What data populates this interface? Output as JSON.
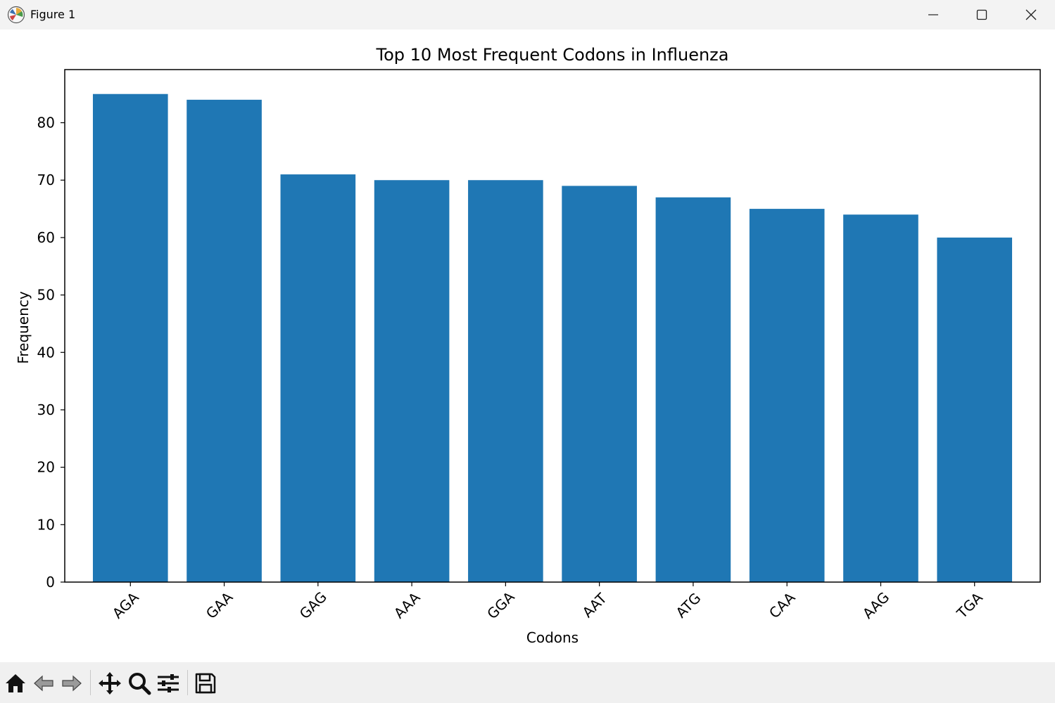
{
  "window": {
    "title": "Figure 1",
    "controls": [
      "minimize-icon",
      "maximize-icon",
      "close-icon"
    ]
  },
  "toolbar": {
    "tools": [
      "home-icon",
      "back-arrow-icon",
      "forward-arrow-icon",
      "pan-icon",
      "zoom-icon",
      "configure-subplots-icon",
      "save-icon"
    ]
  },
  "colors": {
    "bar": "#1f77b4",
    "titlebar": "#f3f3f3",
    "toolbar": "#f0f0f0"
  },
  "chart_data": {
    "type": "bar",
    "title": "Top 10 Most Frequent Codons in Influenza",
    "xlabel": "Codons",
    "ylabel": "Frequency",
    "categories": [
      "AGA",
      "GAA",
      "GAG",
      "AAA",
      "GGA",
      "AAT",
      "ATG",
      "CAA",
      "AAG",
      "TGA"
    ],
    "values": [
      85,
      84,
      71,
      70,
      70,
      69,
      67,
      65,
      64,
      60
    ],
    "ylim": [
      0,
      89.25
    ],
    "yticks": [
      0,
      10,
      20,
      30,
      40,
      50,
      60,
      70,
      80
    ],
    "xtick_rotation": -45,
    "grid": false,
    "legend": "none",
    "bar_color": "#1f77b4"
  }
}
